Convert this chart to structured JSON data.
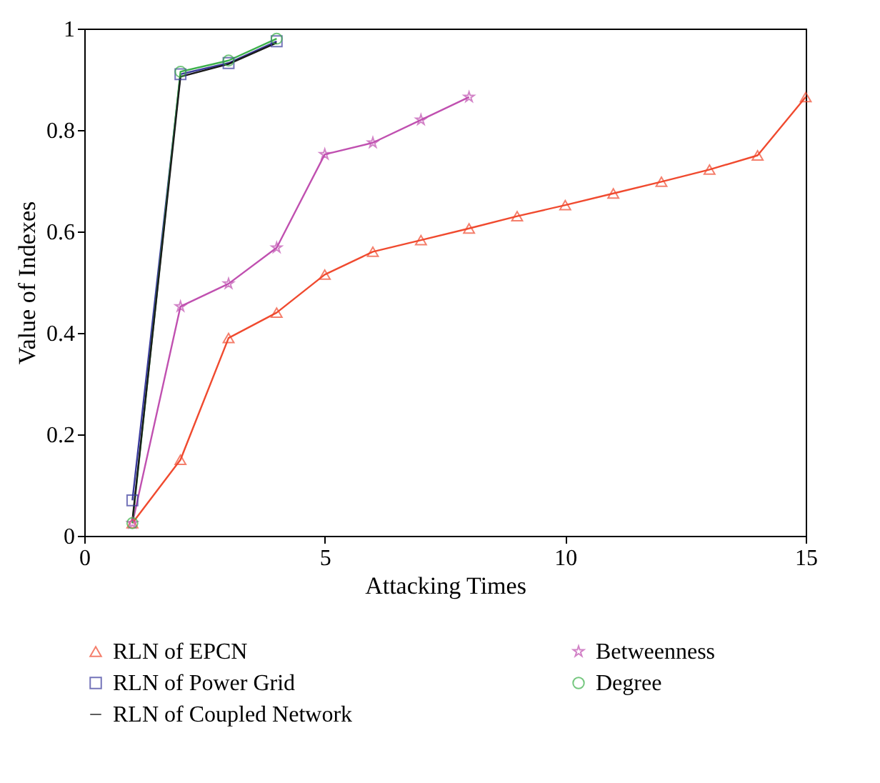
{
  "chart_data": {
    "type": "line",
    "xlabel": "Attacking Times",
    "ylabel": "Value of Indexes",
    "xlim": [
      0,
      15
    ],
    "xticks": [
      0,
      5,
      10,
      15
    ],
    "ylim": [
      0,
      1
    ],
    "yticks": [
      0,
      0.2,
      0.4,
      0.6,
      0.8,
      1
    ],
    "legend": "bottom",
    "series": [
      {
        "name": "RLN of EPCN",
        "color": "#f04a2f",
        "marker": "triangle",
        "x": [
          1,
          2,
          3,
          4,
          5,
          6,
          7,
          8,
          9,
          10,
          11,
          12,
          13,
          14,
          15
        ],
        "values": [
          0.025,
          0.15,
          0.39,
          0.44,
          0.515,
          0.56,
          0.583,
          0.606,
          0.63,
          0.652,
          0.675,
          0.698,
          0.722,
          0.75,
          0.865
        ]
      },
      {
        "name": "Betweenness",
        "color": "#c050b0",
        "marker": "star",
        "x": [
          1,
          2,
          3,
          4,
          5,
          6,
          7,
          8
        ],
        "values": [
          0.025,
          0.452,
          0.497,
          0.568,
          0.752,
          0.775,
          0.82,
          0.865
        ]
      },
      {
        "name": "RLN of Power Grid",
        "color": "#3a3a9c",
        "marker": "square",
        "x": [
          1,
          2,
          3,
          4
        ],
        "values": [
          0.07,
          0.91,
          0.932,
          0.975
        ]
      },
      {
        "name": "Degree",
        "color": "#3cb04a",
        "marker": "circle",
        "x": [
          1,
          2,
          3,
          4
        ],
        "values": [
          0.025,
          0.915,
          0.937,
          0.98
        ]
      },
      {
        "name": "RLN of Coupled Network",
        "color": "#1a1a1a",
        "marker": "none",
        "x": [
          1,
          2,
          3,
          4
        ],
        "values": [
          0.03,
          0.905,
          0.93,
          0.972
        ]
      }
    ]
  }
}
